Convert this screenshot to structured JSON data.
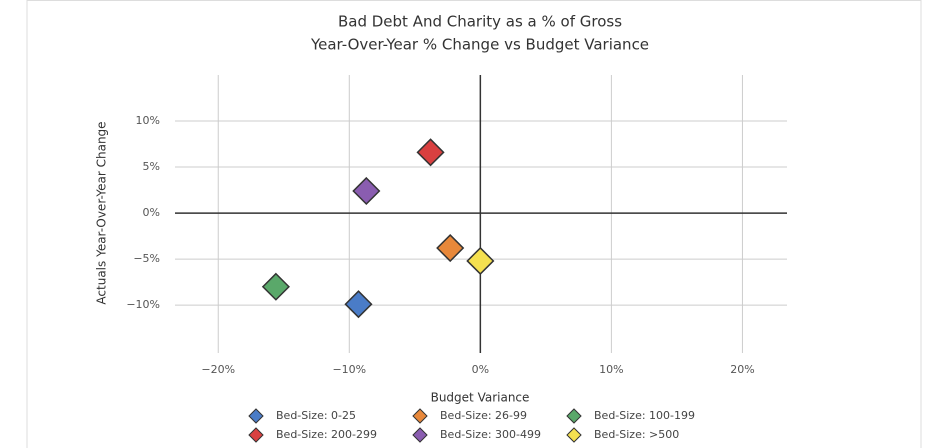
{
  "chart_data": {
    "type": "scatter",
    "title": "Bad Debt And Charity as a % of Gross",
    "subtitle": "Year-Over-Year % Change vs Budget Variance",
    "x_label": "Budget Variance",
    "y_label": "Actuals Year-Over-Year Change",
    "xlim": [
      -23.3,
      23.4
    ],
    "ylim": [
      -15.2,
      15
    ],
    "xticks": [
      {
        "value": -20,
        "label": "−20%"
      },
      {
        "value": -10,
        "label": "−10%"
      },
      {
        "value": 0,
        "label": "0%"
      },
      {
        "value": 10,
        "label": "10%"
      },
      {
        "value": 20,
        "label": "20%"
      }
    ],
    "yticks": [
      {
        "value": -10,
        "label": "−10%"
      },
      {
        "value": -5,
        "label": "−5%"
      },
      {
        "value": 0,
        "label": "0%"
      },
      {
        "value": 5,
        "label": "5%"
      },
      {
        "value": 10,
        "label": "10%"
      }
    ],
    "grid": true,
    "legend": "bottom",
    "series": [
      {
        "name": "Bed-Size: 0-25",
        "color": "#4a7cc7",
        "x": [
          -9.3
        ],
        "y": [
          -9.9
        ]
      },
      {
        "name": "Bed-Size: 26-99",
        "color": "#e8883a",
        "x": [
          -2.3
        ],
        "y": [
          -3.8
        ]
      },
      {
        "name": "Bed-Size: 100-199",
        "color": "#5aa86a",
        "x": [
          -15.6
        ],
        "y": [
          -8.0
        ]
      },
      {
        "name": "Bed-Size: 200-299",
        "color": "#d94040",
        "x": [
          -3.8
        ],
        "y": [
          6.6
        ]
      },
      {
        "name": "Bed-Size: 300-499",
        "color": "#8a5db0",
        "x": [
          -8.7
        ],
        "y": [
          2.4
        ]
      },
      {
        "name": "Bed-Size: >500",
        "color": "#f5e050",
        "x": [
          0
        ],
        "y": [
          -5.2
        ]
      }
    ]
  }
}
